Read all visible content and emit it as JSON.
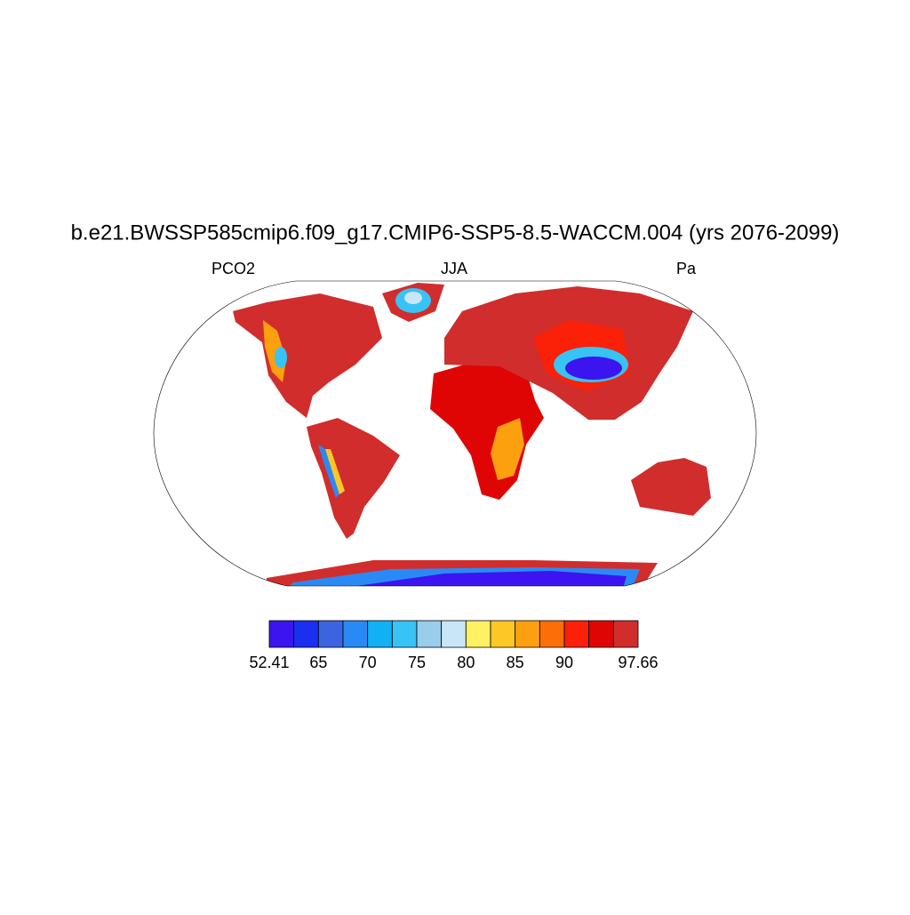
{
  "title": "b.e21.BWSSP585cmip6.f09_g17.CMIP6-SSP5-8.5-WACCM.004 (yrs 2076-2099)",
  "left_label": "PCO2",
  "center_label": "JJA",
  "right_label": "Pa",
  "colorbar": {
    "colors": [
      "#3c14f0",
      "#1a2ff0",
      "#3d64e0",
      "#2a8af5",
      "#12b0f5",
      "#38c3f5",
      "#99cdeb",
      "#c8e6f8",
      "#fff064",
      "#fdc825",
      "#fca00f",
      "#fc6e07",
      "#fb2008",
      "#e00505",
      "#d12d2d"
    ],
    "ticks": [
      52.41,
      65,
      70,
      75,
      80,
      85,
      90,
      97.66
    ]
  }
}
